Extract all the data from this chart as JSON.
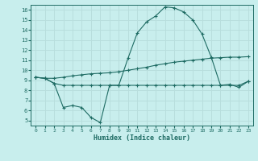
{
  "xlabel": "Humidex (Indice chaleur)",
  "x": [
    0,
    1,
    2,
    3,
    4,
    5,
    6,
    7,
    8,
    9,
    10,
    11,
    12,
    13,
    14,
    15,
    16,
    17,
    18,
    19,
    20,
    21,
    22,
    23
  ],
  "line1": [
    9.3,
    9.2,
    8.7,
    6.3,
    6.5,
    6.3,
    5.3,
    4.8,
    8.5,
    8.5,
    11.2,
    13.7,
    14.8,
    15.4,
    16.3,
    16.2,
    15.8,
    15.0,
    13.6,
    11.3,
    8.5,
    8.6,
    8.3,
    8.9
  ],
  "line2": [
    9.3,
    9.2,
    9.2,
    9.3,
    9.45,
    9.55,
    9.65,
    9.7,
    9.75,
    9.85,
    10.0,
    10.15,
    10.3,
    10.5,
    10.65,
    10.8,
    10.9,
    11.0,
    11.1,
    11.2,
    11.25,
    11.3,
    11.3,
    11.35
  ],
  "line3": [
    9.3,
    9.2,
    8.7,
    8.5,
    8.5,
    8.5,
    8.5,
    8.5,
    8.5,
    8.5,
    8.5,
    8.5,
    8.5,
    8.5,
    8.5,
    8.5,
    8.5,
    8.5,
    8.5,
    8.5,
    8.5,
    8.5,
    8.5,
    8.9
  ],
  "bg_color": "#c8eeed",
  "line_color": "#1e6b63",
  "grid_color": "#b8dedd",
  "ylim": [
    4.5,
    16.5
  ],
  "xlim": [
    -0.5,
    23.5
  ],
  "yticks": [
    5,
    6,
    7,
    8,
    9,
    10,
    11,
    12,
    13,
    14,
    15,
    16
  ],
  "xticks": [
    0,
    1,
    2,
    3,
    4,
    5,
    6,
    7,
    8,
    9,
    10,
    11,
    12,
    13,
    14,
    15,
    16,
    17,
    18,
    19,
    20,
    21,
    22,
    23
  ]
}
